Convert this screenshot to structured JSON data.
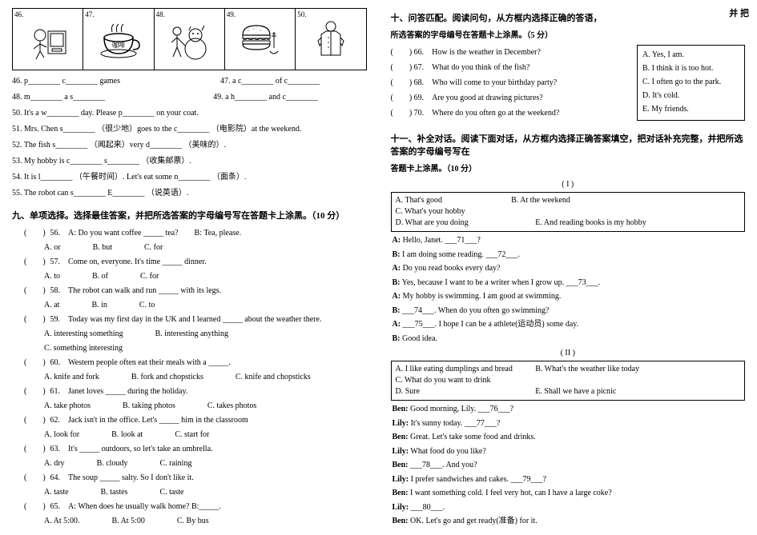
{
  "images": {
    "nums": [
      "46.",
      "47.",
      "48.",
      "49.",
      "50."
    ],
    "coffee_label": "咖啡"
  },
  "fill_blanks": [
    {
      "num": "46.",
      "parts_a": "p________ c________ games",
      "num2": "47.",
      "parts_b": "a c________ of c________"
    },
    {
      "num": "48.",
      "parts_a": "m________ a s________",
      "num2": "49.",
      "parts_b": "a h________ and c________"
    },
    {
      "num": "50.",
      "text": "It's a w________ day. Please p________ on your coat."
    },
    {
      "num": "51.",
      "text": "Mrs. Chen s________ （很少地）goes to the c________ （电影院）at the weekend."
    },
    {
      "num": "52.",
      "text": "The fish s________ （闻起来）very d________ （美味的）."
    },
    {
      "num": "53.",
      "text": "My hobby is c________ s________ （收集邮票）."
    },
    {
      "num": "54.",
      "text": "It is l________ （午餐时间）. Let's eat some n________ （面条）."
    },
    {
      "num": "55.",
      "text": "The robot can s________ E________ （说英语）."
    }
  ],
  "section9_title": "九、单项选择。选择最佳答案，并把所选答案的字母编号写在答题卡上涂黑。（10 分）",
  "mc_questions": [
    {
      "num": "56.",
      "q": "A: Do you want coffee _____ tea?",
      "tail": "B: Tea, please.",
      "opts": [
        "A. or",
        "B. but",
        "C. for"
      ]
    },
    {
      "num": "57.",
      "q": "Come on, everyone. It's time _____ dinner.",
      "tail": "",
      "opts": [
        "A. to",
        "B. of",
        "C. for"
      ]
    },
    {
      "num": "58.",
      "q": "The robot can walk and run _____ with its legs.",
      "tail": "",
      "opts": [
        "A. at",
        "B. in",
        "C. to"
      ]
    },
    {
      "num": "59.",
      "q": "Today was my first day in the UK and I learned _____ about the weather there.",
      "tail": "",
      "opts": [
        "A. interesting something",
        "B. interesting anything",
        "C. something interesting"
      ]
    },
    {
      "num": "60.",
      "q": "Western people often eat their meals with a _____.",
      "tail": "",
      "opts": [
        "A. knife and fork",
        "B. fork and chopsticks",
        "C. knife and chopsticks"
      ]
    },
    {
      "num": "61.",
      "q": "Janet loves _____ during the holiday.",
      "tail": "",
      "opts": [
        "A. take photos",
        "B. taking photos",
        "C. takes photos"
      ]
    },
    {
      "num": "62.",
      "q": "Jack isn't in the office. Let's _____ him in the classroom",
      "tail": "",
      "opts": [
        "A. look for",
        "B. look at",
        "C. start for"
      ]
    },
    {
      "num": "63.",
      "q": "It's _____ outdoors, so let's take an umbrella.",
      "tail": "",
      "opts": [
        "A. dry",
        "B. cloudy",
        "C. raining"
      ]
    },
    {
      "num": "64.",
      "q": "The soup _____ salty. So I don't like it.",
      "tail": "",
      "opts": [
        "A. taste",
        "B. tastes",
        "C. taste"
      ]
    },
    {
      "num": "65.",
      "q": "A: When does he usually walk home? B:_____.",
      "tail": "",
      "opts": [
        "A. At 5:00.",
        "B. At 5:00",
        "C. By bus"
      ]
    }
  ],
  "float_note": "并 把",
  "section10_title": "十、问答匹配。阅读问句，从方框内选择正确的答语，",
  "section10_sub": "所选答案的字母编号在答题卡上涂黑。（5 分）",
  "match_answers": [
    "A.  Yes, I am.",
    "B.  I think it is too hot.",
    "C.  I often go to the park.",
    "D.  It's cold.",
    "E.  My friends."
  ],
  "match_questions": [
    {
      "num": "66.",
      "text": "How is the weather in December?"
    },
    {
      "num": "67.",
      "text": "What do you think of the fish?"
    },
    {
      "num": "68.",
      "text": "Who will come to your birthday party?"
    },
    {
      "num": "69.",
      "text": "Are you good at drawing pictures?"
    },
    {
      "num": "70.",
      "text": "Where do you often go at the weekend?"
    }
  ],
  "section11_title": "十一、补全对话。阅读下面对话，从方框内选择正确答案填空，把对话补充完整，并把所选答案的字母编号写在",
  "section11_sub": "答题卡上涂黑。（10 分）",
  "dialogue1_mark": "( I )",
  "dialogue1_options": {
    "row1": [
      "A. That's good",
      "B. At the weekend",
      "C. What's your hobby"
    ],
    "row2": [
      "D. What are you doing",
      "E. And reading books is my hobby"
    ]
  },
  "dialogue1_lines": [
    "A: Hello, Janet. ___71___?",
    "B: I am doing some reading. ___72___.",
    "A: Do you read books every day?",
    "B: Yes, because I want to be a writer when I grow up. ___73___.",
    "A: My hobby is swimming. I am good at swimming.",
    "B: ___74___. When do you often go swimming?",
    "A: ___75___. I hope I can be a athlete(运动员) some day.",
    "B: Good idea."
  ],
  "dialogue2_mark": "( II )",
  "dialogue2_options": {
    "row1": [
      "A. I like eating dumplings and bread",
      "B. What's the weather like today",
      "C. What do you want to drink"
    ],
    "row2": [
      "D. Sure",
      "E. Shall we have a picnic"
    ]
  },
  "dialogue2_lines": [
    "Ben: Good morning, Lily. ___76___?",
    "Lily: It's sunny today. ___77___?",
    "Ben: Great. Let's take some food and drinks.",
    "Lily: What food do you like?",
    "Ben: ___78___. And you?",
    "Lily: I prefer sandwiches and cakes. ___79___?",
    "Ben: I want something cold. I feel very hot, can I have a large coke?",
    "Lily: ___80___.",
    "Ben: OK. Let's go and get ready(准备) for it."
  ],
  "colors": {
    "text": "#000000",
    "bg": "#ffffff",
    "border": "#000000"
  }
}
